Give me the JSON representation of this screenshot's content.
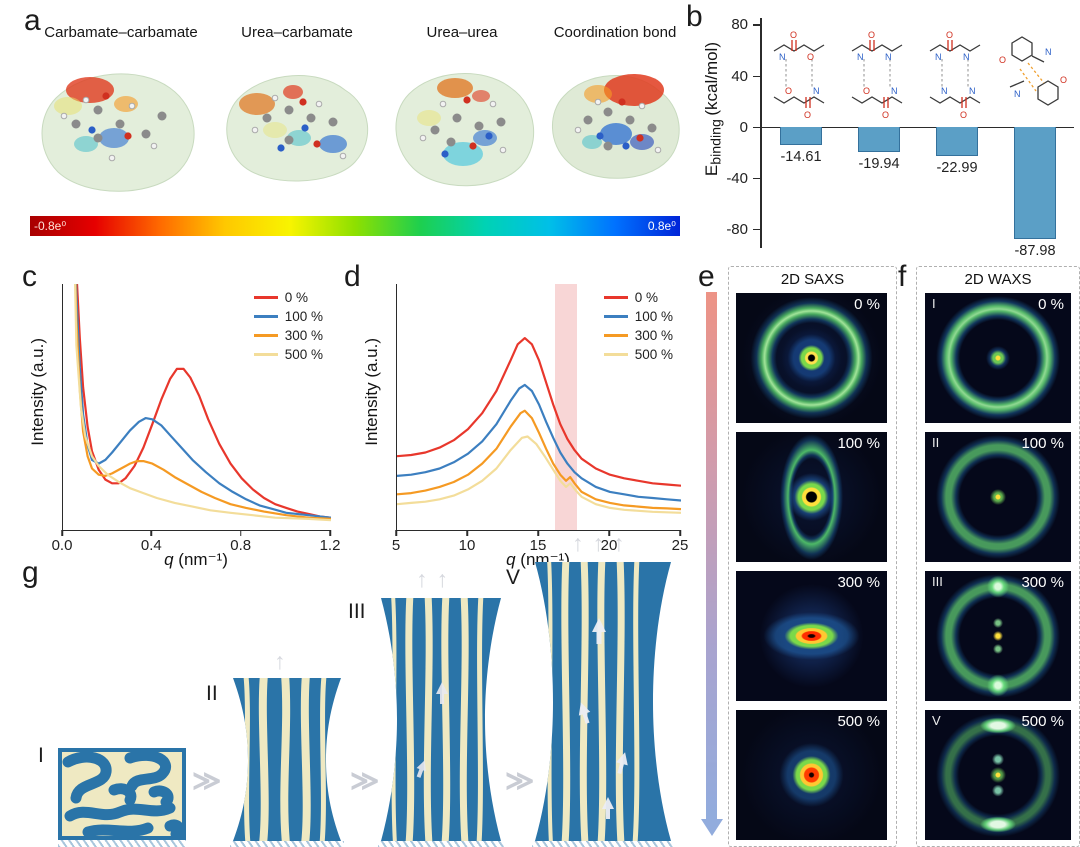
{
  "panels": {
    "a": {
      "label": "a",
      "structures": [
        {
          "title": "Carbamate–carbamate",
          "icon": "esp-surface-molecule"
        },
        {
          "title": "Urea–carbamate",
          "icon": "esp-surface-molecule"
        },
        {
          "title": "Urea–urea",
          "icon": "esp-surface-molecule"
        },
        {
          "title": "Coordination bond",
          "icon": "esp-surface-molecule"
        }
      ],
      "colorbar": {
        "min_label": "-0.8e⁰",
        "max_label": "0.8e⁰",
        "colors": [
          "#a80000",
          "#e60000",
          "#ff6a00",
          "#ffc800",
          "#f8f400",
          "#8ee000",
          "#1ecf4e",
          "#00d2b4",
          "#00bfe8",
          "#0072ff",
          "#0024d8"
        ]
      }
    },
    "b": {
      "label": "b"
    },
    "c": {
      "label": "c"
    },
    "d": {
      "label": "d"
    },
    "e": {
      "label": "e",
      "title": "2D SAXS",
      "tiles": [
        {
          "strain": "0 %",
          "pattern": "isotropic-ring-with-beamstop"
        },
        {
          "strain": "100 %",
          "pattern": "vertical-ellipse-ring"
        },
        {
          "strain": "300 %",
          "pattern": "equatorial-streak-bright-center"
        },
        {
          "strain": "500 %",
          "pattern": "bright-center-spot"
        }
      ]
    },
    "f": {
      "label": "f",
      "title": "2D WAXS",
      "tiles": [
        {
          "numeral": "I",
          "strain": "0 %",
          "pattern": "uniform-ring"
        },
        {
          "numeral": "II",
          "strain": "100 %",
          "pattern": "uniform-ring"
        },
        {
          "numeral": "III",
          "strain": "300 %",
          "pattern": "ring-with-meridional-spots"
        },
        {
          "numeral": "V",
          "strain": "500 %",
          "pattern": "ring-with-meridional-arcs"
        }
      ]
    },
    "g": {
      "label": "g",
      "chevron": "≫",
      "up_arrow": "↑",
      "stages": [
        {
          "numeral": "I"
        },
        {
          "numeral": "II"
        },
        {
          "numeral": "III"
        },
        {
          "numeral": "V"
        }
      ]
    }
  },
  "chart_data": [
    {
      "id": "binding-energy-bars",
      "type": "bar",
      "categories": [
        "Carbamate–carbamate",
        "Urea–carbamate",
        "Urea–urea",
        "Coordination bond"
      ],
      "values": [
        -14.61,
        -19.94,
        -22.99,
        -87.98
      ],
      "value_labels": [
        "-14.61",
        "-19.94",
        "-22.99",
        "-87.98"
      ],
      "ylabel": "Ebinding (kcal/mol)",
      "ylabel_parts": {
        "main": "E",
        "sub": "binding",
        "unit": "(kcal/mol)"
      },
      "ylim": [
        -95,
        85
      ],
      "yticks": [
        80,
        40,
        0,
        -40,
        -80
      ],
      "bar_color": "#5b9fc6",
      "bar_border": "#34719c"
    },
    {
      "id": "saxs-1d-profiles",
      "type": "line",
      "xlabel": "q (nm⁻¹)",
      "xlabel_parts": {
        "italic": "q",
        "unit": " (nm⁻¹)"
      },
      "ylabel": "Intensity (a.u.)",
      "xlim": [
        0,
        1.2
      ],
      "ylim": [
        0,
        1
      ],
      "xticks": [
        "0.0",
        "0.4",
        "0.8",
        "1.2"
      ],
      "legend_position": "top-right",
      "series": [
        {
          "name": "0 %",
          "color": "#e8372c",
          "points": [
            [
              0.045,
              1.4
            ],
            [
              0.06,
              1.05
            ],
            [
              0.075,
              0.78
            ],
            [
              0.09,
              0.58
            ],
            [
              0.11,
              0.42
            ],
            [
              0.13,
              0.32
            ],
            [
              0.16,
              0.245
            ],
            [
              0.19,
              0.205
            ],
            [
              0.22,
              0.19
            ],
            [
              0.25,
              0.19
            ],
            [
              0.28,
              0.21
            ],
            [
              0.32,
              0.26
            ],
            [
              0.36,
              0.335
            ],
            [
              0.4,
              0.43
            ],
            [
              0.44,
              0.53
            ],
            [
              0.48,
              0.615
            ],
            [
              0.51,
              0.655
            ],
            [
              0.54,
              0.655
            ],
            [
              0.57,
              0.62
            ],
            [
              0.61,
              0.545
            ],
            [
              0.65,
              0.45
            ],
            [
              0.7,
              0.35
            ],
            [
              0.75,
              0.27
            ],
            [
              0.8,
              0.21
            ],
            [
              0.85,
              0.165
            ],
            [
              0.9,
              0.13
            ],
            [
              0.95,
              0.105
            ],
            [
              1.0,
              0.09
            ],
            [
              1.05,
              0.075
            ],
            [
              1.1,
              0.065
            ],
            [
              1.15,
              0.055
            ],
            [
              1.2,
              0.05
            ]
          ]
        },
        {
          "name": "100 %",
          "color": "#3c7fc0",
          "points": [
            [
              0.045,
              1.4
            ],
            [
              0.06,
              0.95
            ],
            [
              0.075,
              0.66
            ],
            [
              0.09,
              0.47
            ],
            [
              0.11,
              0.345
            ],
            [
              0.13,
              0.285
            ],
            [
              0.16,
              0.27
            ],
            [
              0.19,
              0.285
            ],
            [
              0.22,
              0.315
            ],
            [
              0.26,
              0.36
            ],
            [
              0.3,
              0.405
            ],
            [
              0.34,
              0.44
            ],
            [
              0.37,
              0.455
            ],
            [
              0.4,
              0.45
            ],
            [
              0.44,
              0.425
            ],
            [
              0.48,
              0.385
            ],
            [
              0.53,
              0.335
            ],
            [
              0.58,
              0.285
            ],
            [
              0.64,
              0.235
            ],
            [
              0.7,
              0.19
            ],
            [
              0.76,
              0.155
            ],
            [
              0.82,
              0.125
            ],
            [
              0.88,
              0.1
            ],
            [
              0.94,
              0.085
            ],
            [
              1.0,
              0.07
            ],
            [
              1.1,
              0.06
            ],
            [
              1.2,
              0.05
            ]
          ]
        },
        {
          "name": "300 %",
          "color": "#f59a23",
          "points": [
            [
              0.045,
              1.4
            ],
            [
              0.06,
              0.85
            ],
            [
              0.075,
              0.57
            ],
            [
              0.09,
              0.4
            ],
            [
              0.11,
              0.3
            ],
            [
              0.13,
              0.25
            ],
            [
              0.16,
              0.225
            ],
            [
              0.19,
              0.22
            ],
            [
              0.22,
              0.23
            ],
            [
              0.26,
              0.25
            ],
            [
              0.3,
              0.27
            ],
            [
              0.33,
              0.28
            ],
            [
              0.36,
              0.28
            ],
            [
              0.4,
              0.27
            ],
            [
              0.45,
              0.245
            ],
            [
              0.5,
              0.215
            ],
            [
              0.56,
              0.185
            ],
            [
              0.62,
              0.155
            ],
            [
              0.68,
              0.13
            ],
            [
              0.75,
              0.105
            ],
            [
              0.82,
              0.09
            ],
            [
              0.9,
              0.075
            ],
            [
              1.0,
              0.06
            ],
            [
              1.1,
              0.05
            ],
            [
              1.2,
              0.045
            ]
          ]
        },
        {
          "name": "500 %",
          "color": "#f3dd9a",
          "points": [
            [
              0.045,
              1.4
            ],
            [
              0.06,
              0.75
            ],
            [
              0.08,
              0.5
            ],
            [
              0.1,
              0.38
            ],
            [
              0.13,
              0.3
            ],
            [
              0.16,
              0.26
            ],
            [
              0.2,
              0.225
            ],
            [
              0.25,
              0.195
            ],
            [
              0.3,
              0.17
            ],
            [
              0.36,
              0.15
            ],
            [
              0.42,
              0.13
            ],
            [
              0.5,
              0.11
            ],
            [
              0.58,
              0.095
            ],
            [
              0.66,
              0.08
            ],
            [
              0.75,
              0.07
            ],
            [
              0.85,
              0.06
            ],
            [
              0.95,
              0.05
            ],
            [
              1.1,
              0.045
            ],
            [
              1.2,
              0.04
            ]
          ]
        }
      ]
    },
    {
      "id": "waxs-1d-profiles",
      "type": "line",
      "xlabel": "q (nm⁻¹)",
      "xlabel_parts": {
        "italic": "q",
        "unit": " (nm⁻¹)"
      },
      "ylabel": "Intensity (a.u.)",
      "xlim": [
        5,
        25
      ],
      "ylim": [
        0,
        1
      ],
      "xticks": [
        "5",
        "10",
        "15",
        "20",
        "25"
      ],
      "legend_position": "top-right",
      "highlight_band": {
        "x0": 16.1,
        "x1": 17.7,
        "color": "rgba(236,146,146,0.38)"
      },
      "series": [
        {
          "name": "0 %",
          "color": "#e8372c",
          "points": [
            [
              5,
              0.3
            ],
            [
              6,
              0.305
            ],
            [
              7,
              0.315
            ],
            [
              8,
              0.335
            ],
            [
              9,
              0.365
            ],
            [
              10,
              0.41
            ],
            [
              11,
              0.475
            ],
            [
              12,
              0.565
            ],
            [
              13,
              0.69
            ],
            [
              13.5,
              0.755
            ],
            [
              14,
              0.78
            ],
            [
              14.5,
              0.755
            ],
            [
              15,
              0.69
            ],
            [
              15.5,
              0.6
            ],
            [
              16,
              0.51
            ],
            [
              16.5,
              0.43
            ],
            [
              17,
              0.37
            ],
            [
              17.5,
              0.325
            ],
            [
              18,
              0.29
            ],
            [
              19,
              0.25
            ],
            [
              20,
              0.225
            ],
            [
              21,
              0.21
            ],
            [
              22,
              0.2
            ],
            [
              23,
              0.19
            ],
            [
              24,
              0.185
            ],
            [
              25,
              0.18
            ]
          ]
        },
        {
          "name": "100 %",
          "color": "#3c7fc0",
          "points": [
            [
              5,
              0.22
            ],
            [
              6,
              0.225
            ],
            [
              7,
              0.235
            ],
            [
              8,
              0.25
            ],
            [
              9,
              0.275
            ],
            [
              10,
              0.31
            ],
            [
              11,
              0.36
            ],
            [
              12,
              0.43
            ],
            [
              13,
              0.525
            ],
            [
              13.6,
              0.575
            ],
            [
              14,
              0.59
            ],
            [
              14.5,
              0.565
            ],
            [
              15,
              0.51
            ],
            [
              15.5,
              0.44
            ],
            [
              16,
              0.375
            ],
            [
              16.5,
              0.315
            ],
            [
              17,
              0.27
            ],
            [
              17.5,
              0.235
            ],
            [
              18,
              0.21
            ],
            [
              19,
              0.175
            ],
            [
              20,
              0.155
            ],
            [
              21,
              0.145
            ],
            [
              22,
              0.135
            ],
            [
              23,
              0.13
            ],
            [
              24,
              0.125
            ],
            [
              25,
              0.12
            ]
          ]
        },
        {
          "name": "300 %",
          "color": "#f59a23",
          "points": [
            [
              5,
              0.145
            ],
            [
              6,
              0.15
            ],
            [
              7,
              0.16
            ],
            [
              8,
              0.175
            ],
            [
              9,
              0.195
            ],
            [
              10,
              0.225
            ],
            [
              11,
              0.27
            ],
            [
              12,
              0.33
            ],
            [
              13,
              0.42
            ],
            [
              13.7,
              0.475
            ],
            [
              14,
              0.485
            ],
            [
              14.5,
              0.455
            ],
            [
              15,
              0.395
            ],
            [
              15.5,
              0.33
            ],
            [
              16,
              0.27
            ],
            [
              16.5,
              0.225
            ],
            [
              16.9,
              0.2
            ],
            [
              17.2,
              0.215
            ],
            [
              17.5,
              0.19
            ],
            [
              18,
              0.155
            ],
            [
              19,
              0.125
            ],
            [
              20,
              0.11
            ],
            [
              21,
              0.1
            ],
            [
              22,
              0.095
            ],
            [
              23,
              0.09
            ],
            [
              24,
              0.088
            ],
            [
              25,
              0.085
            ]
          ]
        },
        {
          "name": "500 %",
          "color": "#f3dd9a",
          "points": [
            [
              5,
              0.105
            ],
            [
              6,
              0.11
            ],
            [
              7,
              0.115
            ],
            [
              8,
              0.125
            ],
            [
              9,
              0.14
            ],
            [
              10,
              0.165
            ],
            [
              11,
              0.2
            ],
            [
              12,
              0.25
            ],
            [
              13,
              0.325
            ],
            [
              13.8,
              0.375
            ],
            [
              14.2,
              0.38
            ],
            [
              14.8,
              0.35
            ],
            [
              15.4,
              0.3
            ],
            [
              16,
              0.245
            ],
            [
              16.5,
              0.2
            ],
            [
              16.9,
              0.175
            ],
            [
              17.2,
              0.19
            ],
            [
              17.6,
              0.16
            ],
            [
              18,
              0.135
            ],
            [
              19,
              0.105
            ],
            [
              20,
              0.09
            ],
            [
              21,
              0.082
            ],
            [
              22,
              0.078
            ],
            [
              23,
              0.074
            ],
            [
              24,
              0.072
            ],
            [
              25,
              0.07
            ]
          ]
        }
      ]
    }
  ]
}
